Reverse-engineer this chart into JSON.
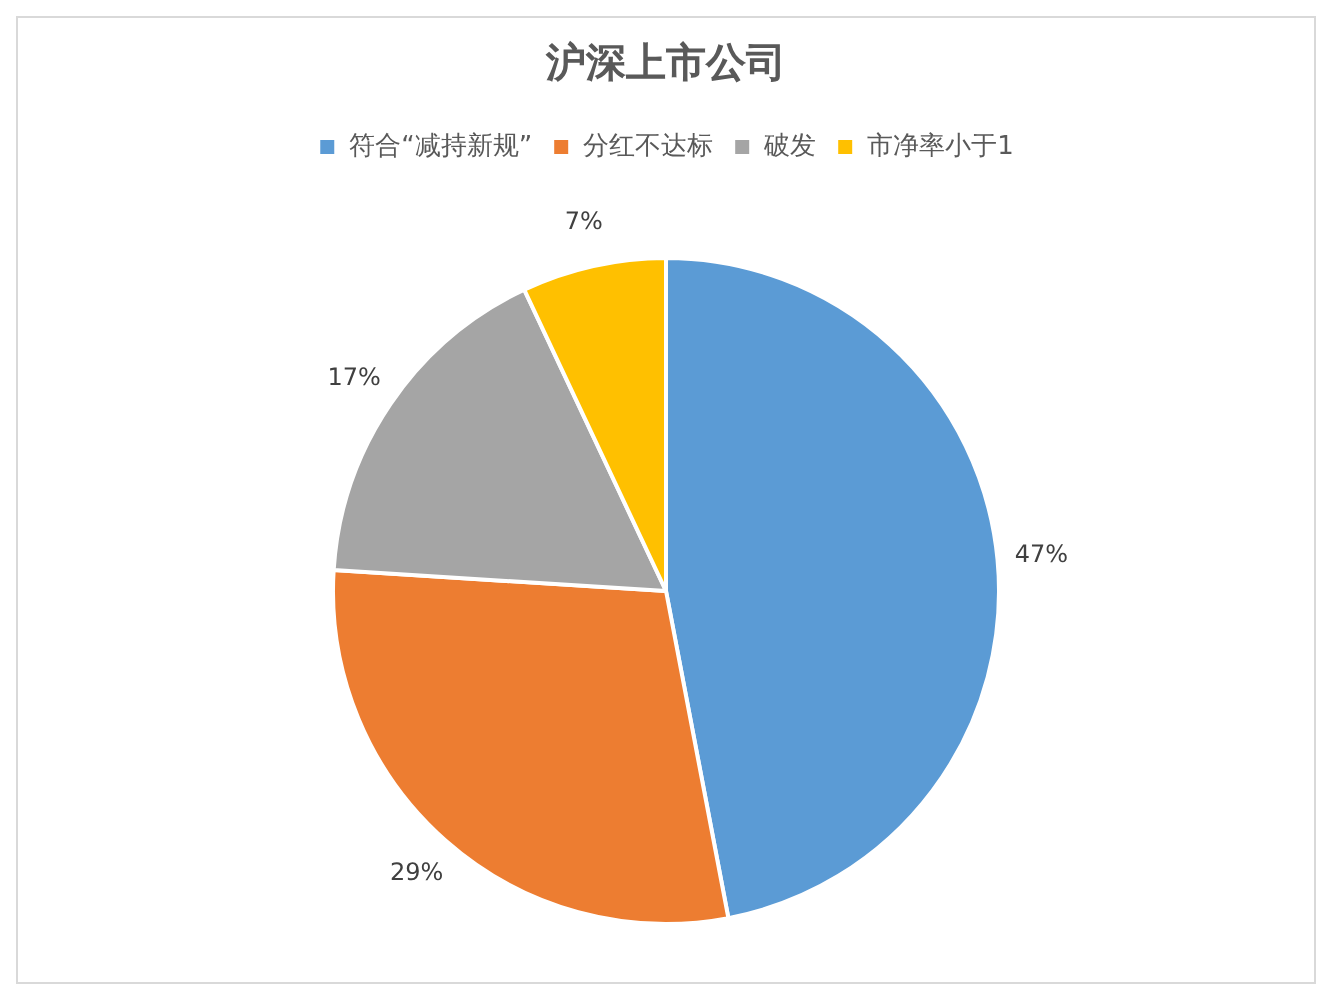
{
  "chart_data": {
    "type": "pie",
    "title": "沪深上市公司",
    "categories": [
      "符合“减持新规”",
      "分红不达标",
      "破发",
      "市净率小于1"
    ],
    "values": [
      47,
      29,
      17,
      7
    ],
    "colors": [
      "#5b9bd5",
      "#ed7d31",
      "#a5a5a5",
      "#ffc000"
    ],
    "value_labels": [
      "47%",
      "29%",
      "17%",
      "7%"
    ],
    "legend": "top"
  }
}
